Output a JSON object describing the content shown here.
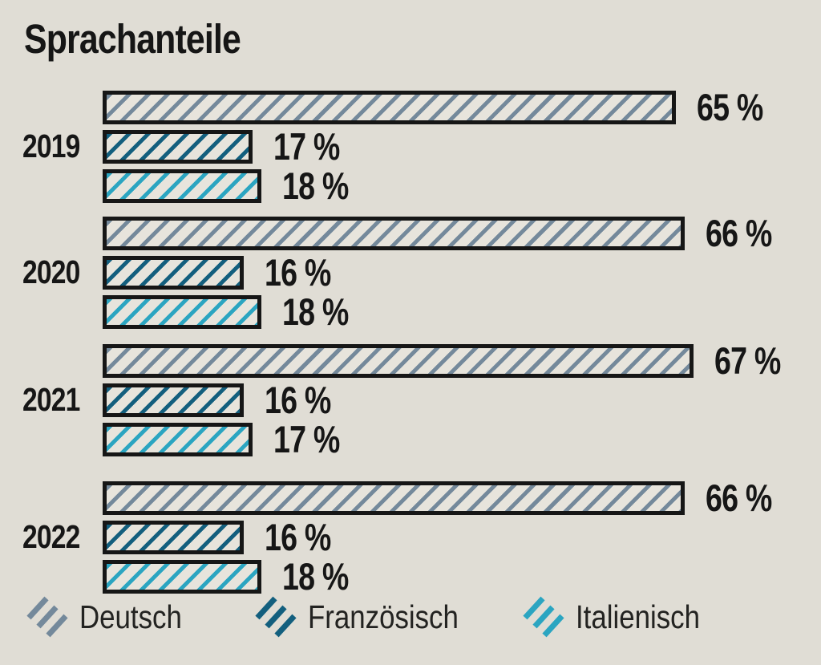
{
  "title": "Sprachanteile",
  "colors": {
    "background": "#E0DDD5",
    "bar_fill": "#E7E4DC",
    "outline": "#161616",
    "text": "#161616",
    "legend_text": "#232321",
    "deutsch_hatch": "#74899B",
    "franzoesisch_hatch": "#135F7E",
    "italienisch_hatch": "#2BA5C1"
  },
  "legend": {
    "position": "bottom",
    "items": [
      {
        "label": "Deutsch",
        "swatch": "gray-blue-diagonal-hatch"
      },
      {
        "label": "Französisch",
        "swatch": "dark-teal-diagonal-hatch"
      },
      {
        "label": "Italienisch",
        "swatch": "cyan-diagonal-hatch"
      }
    ]
  },
  "chart_data": {
    "type": "bar",
    "orientation": "horizontal",
    "title": "Sprachanteile",
    "unit": "%",
    "axis": "none",
    "grid": false,
    "value_labels": true,
    "legend_position": "bottom",
    "categories": [
      "2019",
      "2020",
      "2021",
      "2022"
    ],
    "series": [
      {
        "name": "Deutsch",
        "color": "#74899B",
        "values": [
          65,
          66,
          67,
          66
        ]
      },
      {
        "name": "Französisch",
        "color": "#135F7E",
        "values": [
          17,
          16,
          16,
          16
        ]
      },
      {
        "name": "Italienisch",
        "color": "#2BA5C1",
        "values": [
          18,
          18,
          17,
          18
        ]
      }
    ],
    "xlim": [
      0,
      67
    ]
  }
}
